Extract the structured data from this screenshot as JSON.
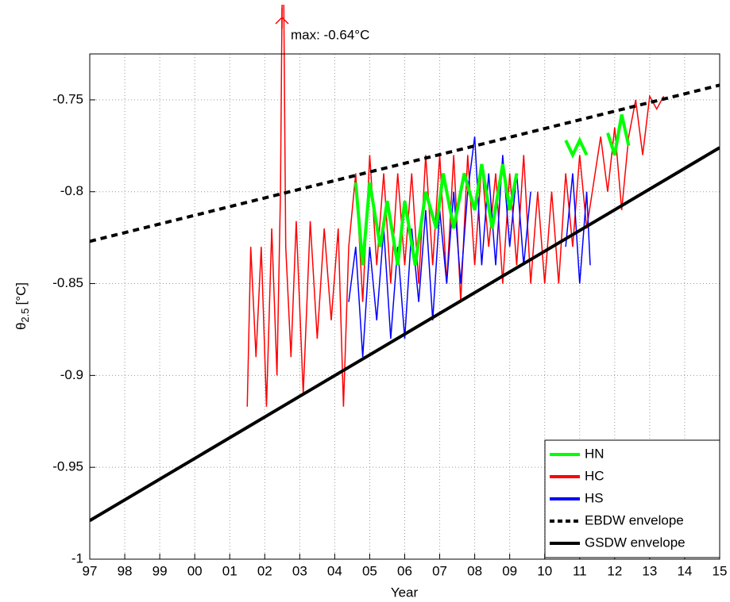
{
  "chart_data": {
    "type": "line",
    "annotation": "max: -0.64°C",
    "xlabel": "Year",
    "ylabel": "θ",
    "ylabel_sub": "2.5",
    "ylabel_unit": "[°C]",
    "xlim": [
      1997,
      2015
    ],
    "ylim": [
      -1,
      -0.725
    ],
    "xticks": [
      {
        "value": 1997,
        "label": "97"
      },
      {
        "value": 1998,
        "label": "98"
      },
      {
        "value": 1999,
        "label": "99"
      },
      {
        "value": 2000,
        "label": "00"
      },
      {
        "value": 2001,
        "label": "01"
      },
      {
        "value": 2002,
        "label": "02"
      },
      {
        "value": 2003,
        "label": "03"
      },
      {
        "value": 2004,
        "label": "04"
      },
      {
        "value": 2005,
        "label": "05"
      },
      {
        "value": 2006,
        "label": "06"
      },
      {
        "value": 2007,
        "label": "07"
      },
      {
        "value": 2008,
        "label": "08"
      },
      {
        "value": 2009,
        "label": "09"
      },
      {
        "value": 2010,
        "label": "10"
      },
      {
        "value": 2011,
        "label": "11"
      },
      {
        "value": 2012,
        "label": "12"
      },
      {
        "value": 2013,
        "label": "13"
      },
      {
        "value": 2014,
        "label": "14"
      },
      {
        "value": 2015,
        "label": "15"
      }
    ],
    "yticks": [
      -1,
      -0.95,
      -0.9,
      -0.85,
      -0.8,
      -0.75
    ],
    "grid": true,
    "legend": "lower right",
    "series": [
      {
        "name": "HN",
        "color": "#00ff00",
        "width": 4,
        "linestyle": "solid",
        "x": [
          2004.6,
          2004.8,
          2005.0,
          2005.3,
          2005.5,
          2005.8,
          2006.0,
          2006.3,
          2006.6,
          2006.9,
          2007.1,
          2007.4,
          2007.7,
          2008.0,
          2008.2,
          2008.5,
          2008.8,
          2009.0,
          2009.2,
          2010.0,
          2010.6,
          2010.8,
          2011.0,
          2011.2,
          2011.5,
          2011.8,
          2012.0,
          2012.2,
          2012.4
        ],
        "values": [
          -0.795,
          -0.84,
          -0.795,
          -0.83,
          -0.805,
          -0.84,
          -0.805,
          -0.84,
          -0.8,
          -0.82,
          -0.79,
          -0.82,
          -0.79,
          -0.81,
          -0.785,
          -0.82,
          -0.785,
          -0.81,
          -0.79,
          null,
          -0.772,
          -0.78,
          -0.772,
          -0.78,
          null,
          -0.768,
          -0.78,
          -0.758,
          -0.775
        ]
      },
      {
        "name": "HC",
        "color": "#ff0000",
        "width": 1.5,
        "linestyle": "solid",
        "x": [
          2001.5,
          2001.6,
          2001.75,
          2001.9,
          2002.05,
          2002.2,
          2002.35,
          2002.45,
          2002.52,
          2002.6,
          2002.75,
          2002.9,
          2003.1,
          2003.3,
          2003.5,
          2003.7,
          2003.9,
          2004.1,
          2004.25,
          2004.4,
          2004.6,
          2004.8,
          2005.0,
          2005.2,
          2005.4,
          2005.6,
          2005.8,
          2006.0,
          2006.2,
          2006.4,
          2006.6,
          2006.8,
          2007.0,
          2007.2,
          2007.4,
          2007.6,
          2007.8,
          2008.0,
          2008.2,
          2008.4,
          2008.6,
          2008.8,
          2009.0,
          2009.2,
          2009.4,
          2009.6,
          2009.8,
          2010.0,
          2010.2,
          2010.4,
          2010.6,
          2010.8,
          2011.0,
          2011.2,
          2011.6,
          2011.8,
          2012.0,
          2012.2,
          2012.4,
          2012.6,
          2012.8,
          2013.0,
          2013.2,
          2013.4
        ],
        "values": [
          -0.917,
          -0.83,
          -0.89,
          -0.83,
          -0.917,
          -0.82,
          -0.9,
          -0.8,
          -0.64,
          -0.83,
          -0.89,
          -0.816,
          -0.91,
          -0.816,
          -0.88,
          -0.82,
          -0.87,
          -0.82,
          -0.917,
          -0.83,
          -0.79,
          -0.86,
          -0.78,
          -0.84,
          -0.79,
          -0.85,
          -0.79,
          -0.84,
          -0.79,
          -0.85,
          -0.78,
          -0.84,
          -0.78,
          -0.85,
          -0.78,
          -0.86,
          -0.78,
          -0.84,
          -0.785,
          -0.83,
          -0.79,
          -0.85,
          -0.79,
          -0.84,
          -0.78,
          -0.85,
          -0.8,
          -0.85,
          -0.8,
          -0.85,
          -0.79,
          -0.83,
          -0.78,
          -0.82,
          -0.77,
          -0.8,
          -0.765,
          -0.81,
          -0.77,
          -0.75,
          -0.78,
          -0.748,
          -0.755,
          -0.748
        ]
      },
      {
        "name": "HS",
        "color": "#0000ff",
        "width": 1.5,
        "linestyle": "solid",
        "x": [
          2004.4,
          2004.6,
          2004.8,
          2005.0,
          2005.2,
          2005.4,
          2005.6,
          2005.8,
          2006.0,
          2006.2,
          2006.4,
          2006.6,
          2006.8,
          2007.0,
          2007.2,
          2007.4,
          2007.6,
          2007.8,
          2008.0,
          2008.2,
          2008.4,
          2008.6,
          2008.8,
          2009.0,
          2009.2,
          2009.4,
          2009.6,
          2010.1,
          2010.6,
          2010.8,
          2011.0,
          2011.2,
          2011.3
        ],
        "values": [
          -0.86,
          -0.83,
          -0.89,
          -0.83,
          -0.87,
          -0.82,
          -0.88,
          -0.83,
          -0.88,
          -0.82,
          -0.86,
          -0.81,
          -0.87,
          -0.81,
          -0.85,
          -0.8,
          -0.85,
          -0.8,
          -0.77,
          -0.84,
          -0.79,
          -0.84,
          -0.78,
          -0.83,
          -0.79,
          -0.84,
          -0.8,
          null,
          -0.83,
          -0.79,
          -0.85,
          -0.8,
          -0.84
        ]
      },
      {
        "name": "EBDW envelope",
        "color": "#000000",
        "width": 4,
        "linestyle": "dashed",
        "x": [
          1997,
          2015
        ],
        "values": [
          -0.827,
          -0.742
        ]
      },
      {
        "name": "GSDW envelope",
        "color": "#000000",
        "width": 4,
        "linestyle": "solid",
        "x": [
          1997,
          2015
        ],
        "values": [
          -0.979,
          -0.776
        ]
      }
    ]
  }
}
